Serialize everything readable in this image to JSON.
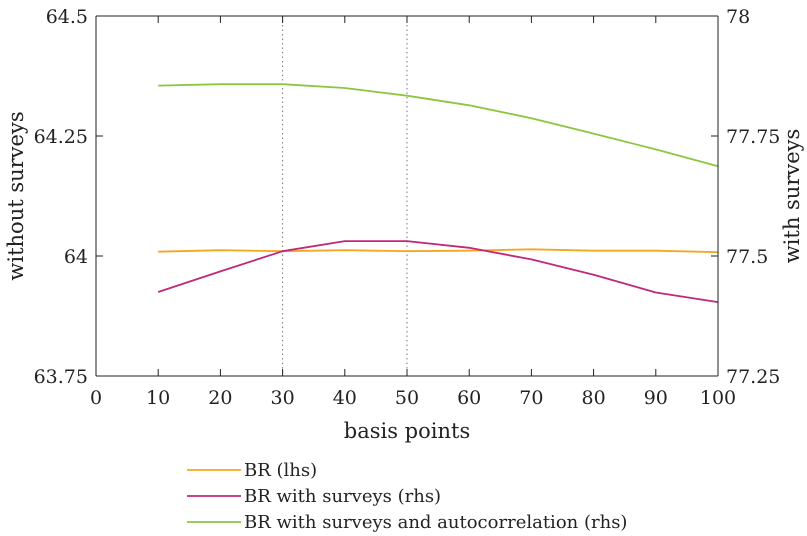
{
  "chart_data": {
    "type": "line",
    "xlabel": "basis points",
    "ylabel_left": "without surveys",
    "ylabel_right": "with surveys",
    "xlim": [
      0,
      100
    ],
    "ylim_left": [
      63.75,
      64.5
    ],
    "ylim_right": [
      77.25,
      78
    ],
    "x_ticks": [
      "0",
      "10",
      "20",
      "30",
      "40",
      "50",
      "60",
      "70",
      "80",
      "90",
      "100"
    ],
    "y_ticks_left": [
      "63.75",
      "64",
      "64.25",
      "64.5"
    ],
    "y_ticks_right": [
      "77.25",
      "77.5",
      "77.75",
      "78"
    ],
    "vertical_reference_lines": [
      30,
      50
    ],
    "grid": false,
    "legend_position": "bottom",
    "x": [
      10,
      20,
      30,
      40,
      50,
      60,
      70,
      80,
      90,
      100
    ],
    "series": [
      {
        "name": "BR (lhs)",
        "axis": "left",
        "color": "#f5a623",
        "values": [
          64.009,
          64.012,
          64.01,
          64.012,
          64.01,
          64.011,
          64.014,
          64.011,
          64.011,
          64.008
        ]
      },
      {
        "name": "BR with surveys (rhs)",
        "axis": "right",
        "color": "#c0287a",
        "values": [
          77.425,
          77.468,
          77.51,
          77.531,
          77.531,
          77.517,
          77.493,
          77.461,
          77.424,
          77.404
        ]
      },
      {
        "name": "BR with surveys and autocorrelation (rhs)",
        "axis": "right",
        "color": "#8cc63f",
        "values": [
          77.855,
          77.858,
          77.858,
          77.85,
          77.834,
          77.814,
          77.787,
          77.755,
          77.722,
          77.687
        ]
      }
    ]
  }
}
